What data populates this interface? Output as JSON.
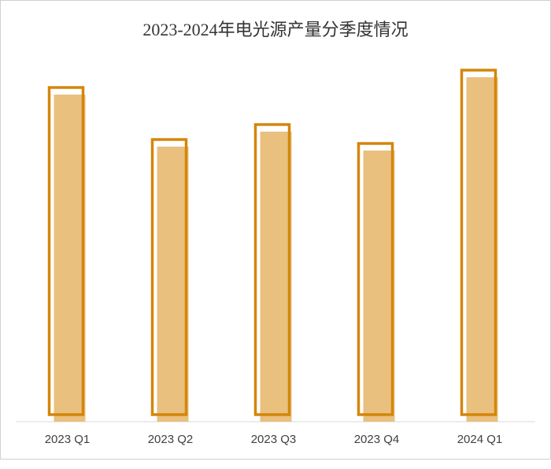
{
  "chart_data": {
    "type": "bar",
    "title": "2023-2024年电光源产量分季度情况",
    "categories": [
      "2023 Q1",
      "2023 Q2",
      "2023 Q3",
      "2023 Q4",
      "2024 Q1"
    ],
    "values": [
      415,
      349,
      368,
      344,
      437
    ],
    "color": "#e9c07e",
    "outline_color": "#d4860b"
  }
}
